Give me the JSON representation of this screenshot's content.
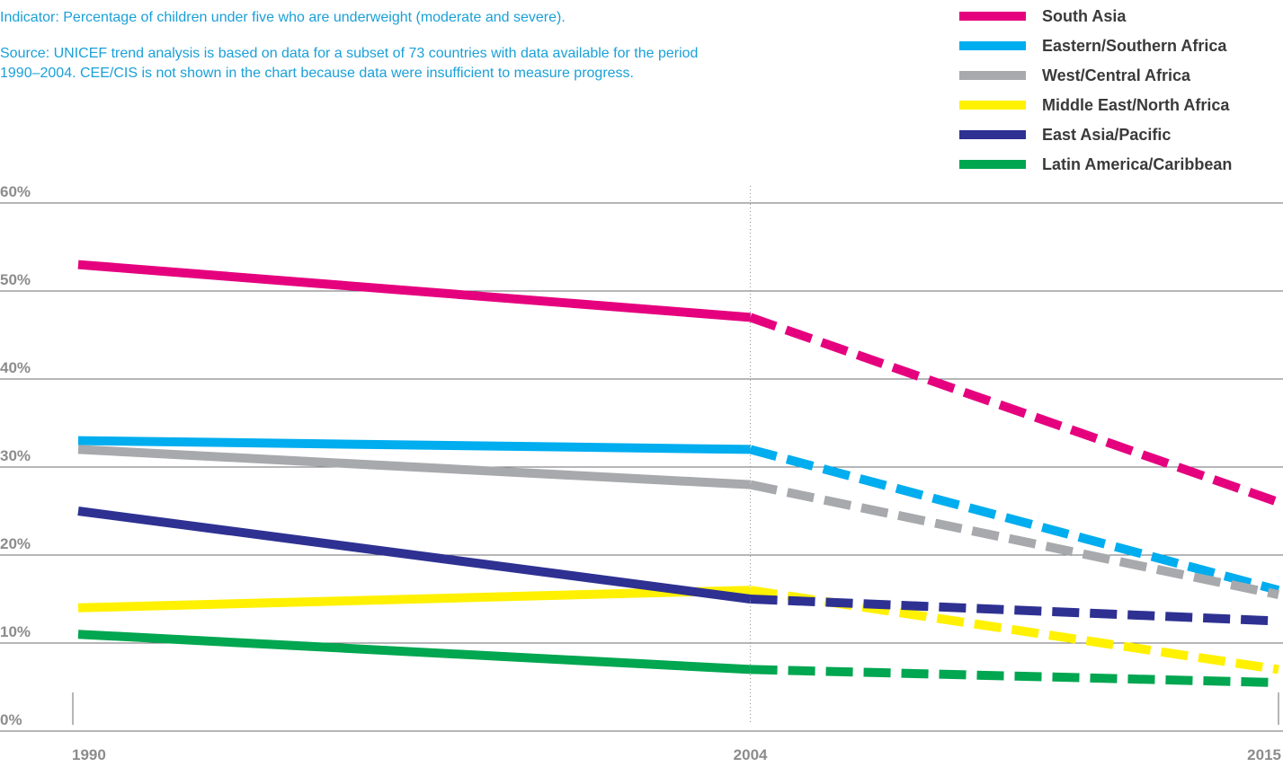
{
  "notes": {
    "indicator": "Indicator: Percentage of children under five who are underweight (moderate and severe).",
    "source_line1": "Source: UNICEF trend analysis is based on data for a subset of 73 countries with data available for the period",
    "source_line2": "1990–2004. CEE/CIS is not shown in the chart because data were insufficient to measure progress."
  },
  "chart_data": {
    "type": "line",
    "x": [
      1990,
      2004,
      2015
    ],
    "xticks": [
      "1990",
      "2004",
      "2015"
    ],
    "yticks": [
      "0%",
      "10%",
      "20%",
      "30%",
      "40%",
      "50%",
      "60%"
    ],
    "ylim": [
      0,
      60
    ],
    "xlim": [
      1990,
      2015
    ],
    "grid": true,
    "legend_position": "top-right",
    "segments": "solid 1990–2004, dashed 2004–2015",
    "series": [
      {
        "name": "South Asia",
        "color": "#e5007e",
        "values": [
          53,
          47,
          26
        ]
      },
      {
        "name": "Eastern/Southern Africa",
        "color": "#00adef",
        "values": [
          33,
          32,
          16
        ]
      },
      {
        "name": "West/Central Africa",
        "color": "#a7a9ac",
        "values": [
          32,
          28,
          15.5
        ]
      },
      {
        "name": "Middle East/North Africa",
        "color": "#fff100",
        "values": [
          14,
          16,
          7
        ]
      },
      {
        "name": "East Asia/Pacific",
        "color": "#2e3192",
        "values": [
          25,
          15,
          12.5
        ]
      },
      {
        "name": "Latin America/Caribbean",
        "color": "#00a650",
        "values": [
          11,
          7,
          5.5
        ]
      }
    ]
  }
}
